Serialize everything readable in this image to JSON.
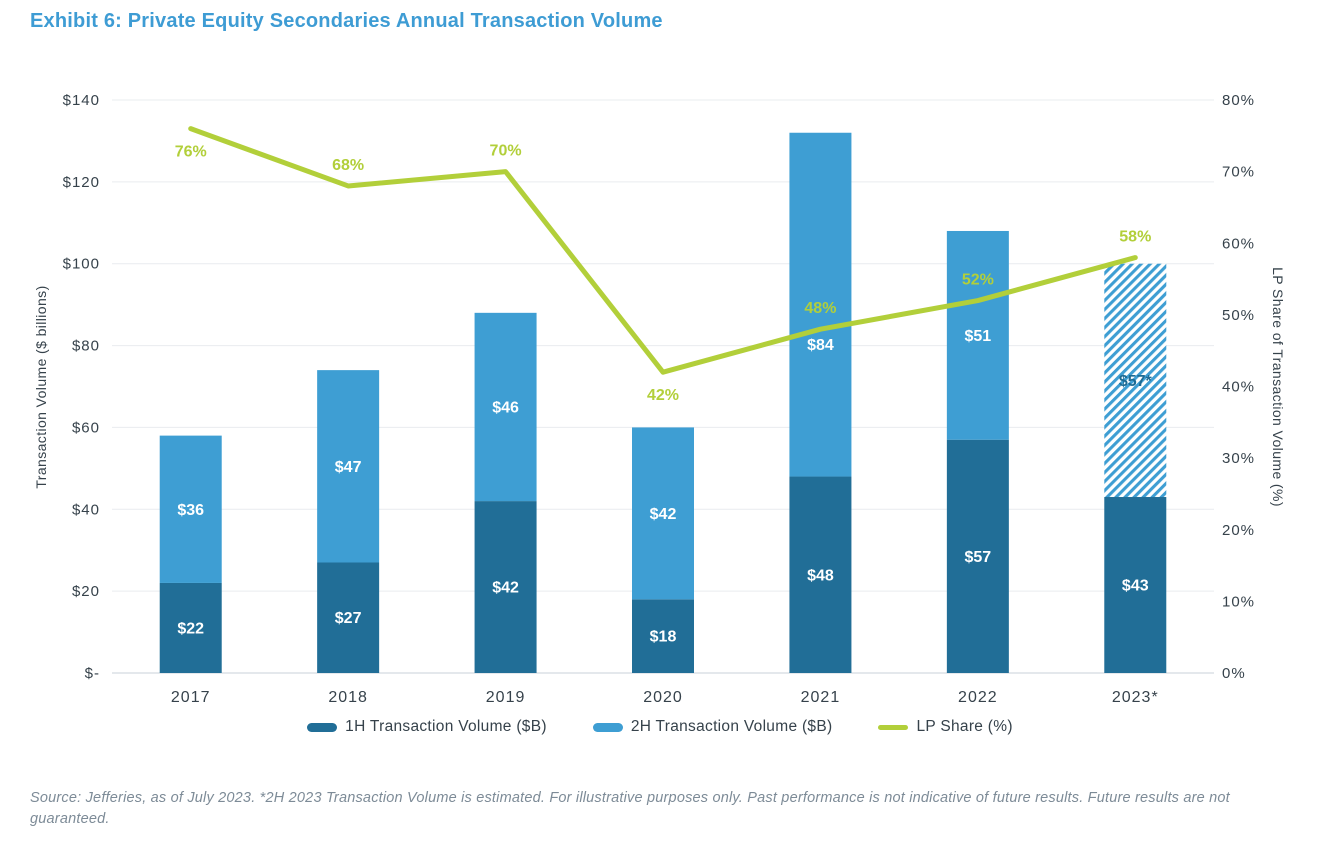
{
  "title": "Exhibit 6: Private Equity Secondaries Annual Transaction Volume",
  "chart_data": {
    "type": "bar",
    "subtype": "stacked-bars-with-line-overlay",
    "categories": [
      "2017",
      "2018",
      "2019",
      "2020",
      "2021",
      "2022",
      "2023*"
    ],
    "series": [
      {
        "name": "1H Transaction Volume ($B)",
        "values": [
          22,
          27,
          42,
          18,
          48,
          57,
          43
        ],
        "labels": [
          "$22",
          "$27",
          "$42",
          "$18",
          "$48",
          "$57",
          "$43"
        ],
        "color": "#216E97"
      },
      {
        "name": "2H Transaction Volume ($B)",
        "values": [
          36,
          47,
          46,
          42,
          84,
          51,
          57
        ],
        "labels": [
          "$36",
          "$47",
          "$46",
          "$42",
          "$84",
          "$51",
          "$57*"
        ],
        "label_dy": [
          0,
          0,
          0,
          0,
          40,
          0,
          0
        ],
        "color": "#3E9ED3",
        "estimated_last": true,
        "estimated_label_color": "#1E6B94"
      }
    ],
    "line": {
      "name": "LP Share (%)",
      "values": [
        76,
        68,
        70,
        42,
        48,
        52,
        58
      ],
      "labels": [
        "76%",
        "68%",
        "70%",
        "42%",
        "48%",
        "52%",
        "58%"
      ],
      "label_pos": [
        "below",
        "above",
        "above",
        "below",
        "above",
        "above",
        "above"
      ],
      "color": "#B2CF3A"
    },
    "y_left": {
      "label": "Transaction Volume ($ billions)",
      "ticks": [
        "$-",
        "$20",
        "$40",
        "$60",
        "$80",
        "$100",
        "$120",
        "$140"
      ],
      "min": 0,
      "max": 140
    },
    "y_right": {
      "label": "LP Share of Transaction Volume (%)",
      "ticks": [
        "0%",
        "10%",
        "20%",
        "30%",
        "40%",
        "50%",
        "60%",
        "70%",
        "80%"
      ],
      "min": 0,
      "max": 80
    },
    "grid": "horizontal",
    "legend_position": "bottom",
    "bar_label_color": "#ffffff",
    "axis_text_color": "#36424B",
    "gridline_color": "#E9ECEF",
    "baseline_color": "#C9D1D8"
  },
  "legend": {
    "items": [
      {
        "label": "1H Transaction Volume ($B)"
      },
      {
        "label": "2H Transaction Volume ($B)"
      },
      {
        "label": "LP Share (%)"
      }
    ]
  },
  "source": "Source: Jefferies, as of July 2023. *2H 2023 Transaction Volume is estimated. For illustrative purposes only. Past performance is not indicative of future results. Future results are not guaranteed."
}
